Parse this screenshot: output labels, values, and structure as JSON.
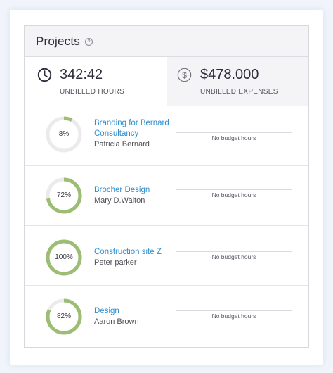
{
  "header": {
    "title": "Projects",
    "help_icon": "question-circle-icon"
  },
  "stats": {
    "hours": {
      "value": "342:42",
      "label": "UNBILLED HOURS",
      "icon": "clock-icon"
    },
    "expenses": {
      "value": "$478.000",
      "label": "UNBILLED EXPENSES",
      "icon": "dollar-circle-icon"
    }
  },
  "colors": {
    "ring_fill": "#9cbd74",
    "ring_track": "#ebebee",
    "link": "#2f8fd0"
  },
  "projects": [
    {
      "name": "Branding for Bernard Consultancy",
      "client": "Patricia Bernard",
      "percent_label": "8%",
      "progress": 0.08,
      "budget": "No budget hours"
    },
    {
      "name": "Brocher Design",
      "client": "Mary D.Walton",
      "percent_label": "72%",
      "progress": 0.72,
      "budget": "No budget hours"
    },
    {
      "name": "Construction site Z",
      "client": "Peter parker",
      "percent_label": "100%",
      "progress": 1.0,
      "budget": "No budget hours"
    },
    {
      "name": "Design",
      "client": "Aaron Brown",
      "percent_label": "82%",
      "progress": 0.82,
      "budget": "No budget hours"
    }
  ]
}
